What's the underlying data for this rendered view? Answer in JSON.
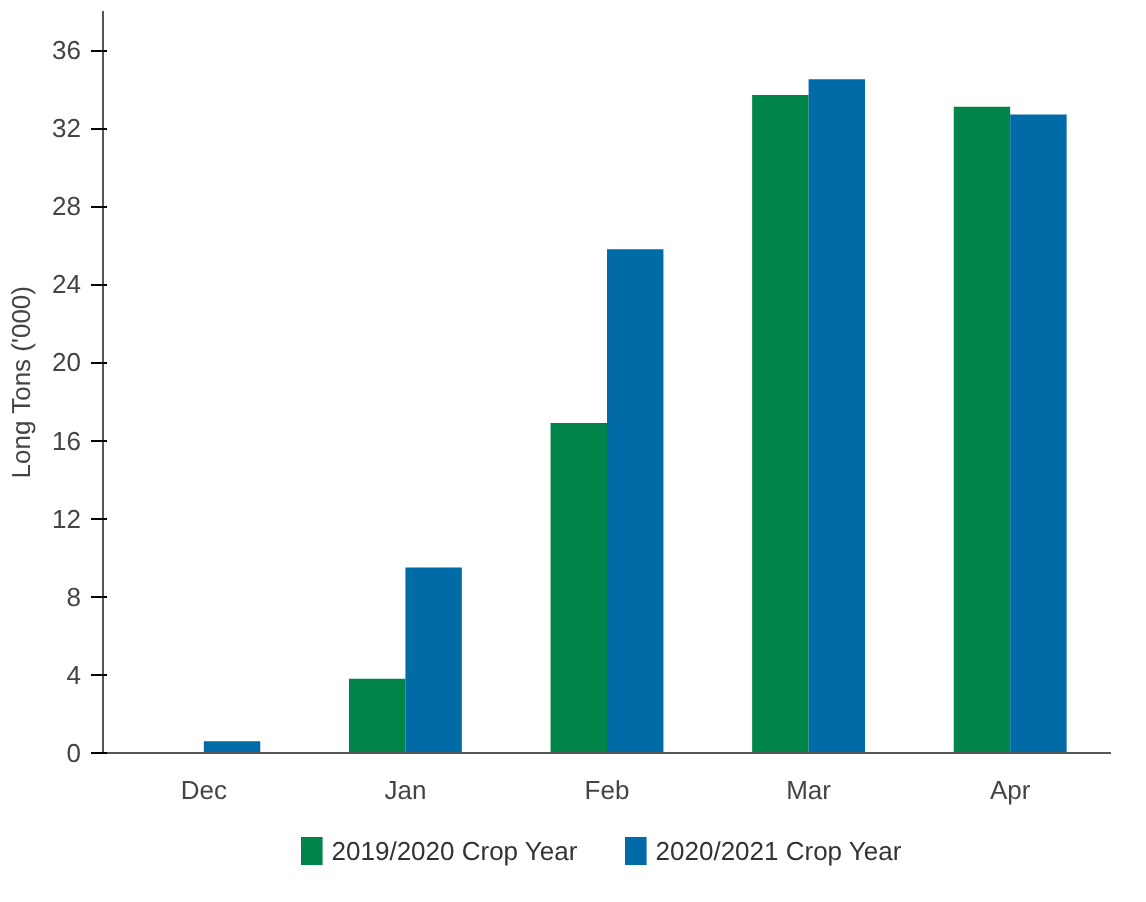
{
  "chart_data": {
    "type": "bar",
    "ylabel": "Long Tons ('000)",
    "categories": [
      "Dec",
      "Jan",
      "Feb",
      "Mar",
      "Apr"
    ],
    "series": [
      {
        "name": "2019/2020 Crop Year",
        "color": "#00844a",
        "values": [
          null,
          3.8,
          16.9,
          33.7,
          33.1
        ]
      },
      {
        "name": "2020/2021 Crop Year",
        "color": "#006ba6",
        "values": [
          0.6,
          9.5,
          25.8,
          34.5,
          32.7
        ]
      }
    ],
    "ylim": [
      0,
      38
    ],
    "yticks": [
      0,
      4,
      8,
      12,
      16,
      20,
      24,
      28,
      32,
      36
    ],
    "grid": false,
    "legend": "bottom"
  }
}
